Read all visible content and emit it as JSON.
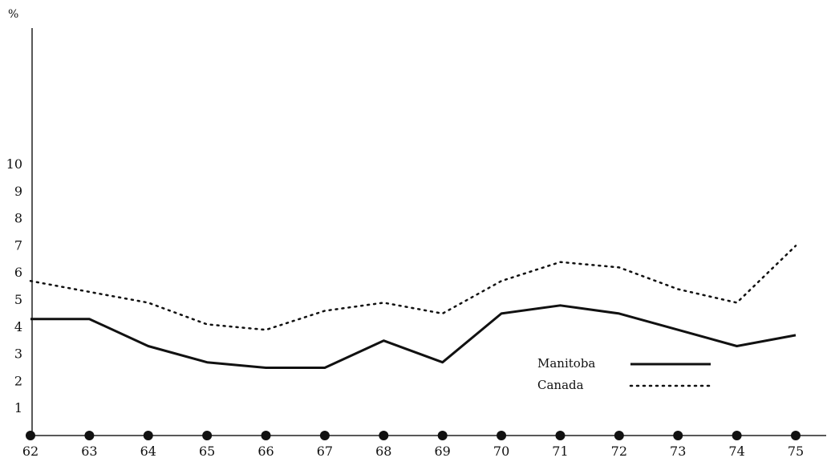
{
  "chart_data": {
    "type": "line",
    "title": "",
    "xlabel": "",
    "ylabel": "%",
    "x": [
      "62",
      "63",
      "64",
      "65",
      "66",
      "67",
      "68",
      "69",
      "70",
      "71",
      "72",
      "73",
      "74",
      "75"
    ],
    "yticks": [
      "1",
      "2",
      "3",
      "4",
      "5",
      "6",
      "7",
      "8",
      "9",
      "10"
    ],
    "ylim": [
      0,
      15
    ],
    "grid": false,
    "legend_position": "bottom-right",
    "series": [
      {
        "name": "Manitoba",
        "style": "solid",
        "values": [
          4.3,
          4.3,
          3.3,
          2.7,
          2.5,
          2.5,
          3.5,
          2.7,
          4.5,
          4.8,
          4.5,
          3.9,
          3.3,
          3.7
        ]
      },
      {
        "name": "Canada",
        "style": "dotted",
        "values": [
          5.7,
          5.3,
          4.9,
          4.1,
          3.9,
          4.6,
          4.9,
          4.5,
          5.7,
          6.4,
          6.2,
          5.4,
          4.9,
          7.0
        ]
      }
    ],
    "colors": {
      "line": "#111111",
      "axis": "#222222",
      "marker": "#111111"
    }
  }
}
